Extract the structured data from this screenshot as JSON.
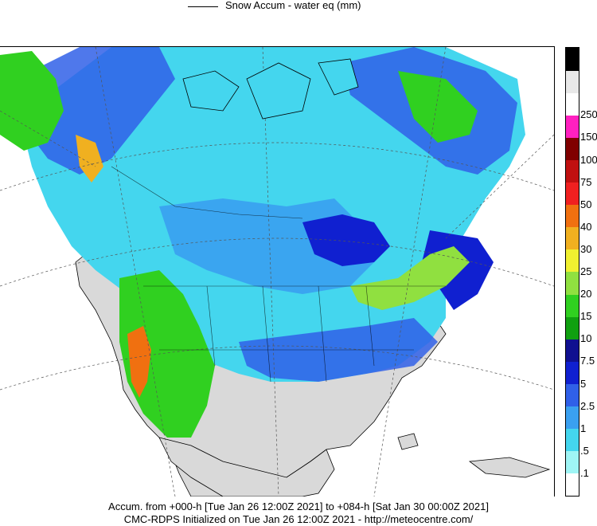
{
  "title": "Snow Accum - water eq (mm)",
  "legend": {
    "colors": [
      "#ffffff",
      "#9ff5f5",
      "#44d6ee",
      "#3aa0f0",
      "#3060e8",
      "#1020d0",
      "#101090",
      "#10a010",
      "#30d020",
      "#90e040",
      "#f0f030",
      "#f0b020",
      "#f07010",
      "#f02020",
      "#c01010",
      "#800000",
      "#ff20c0",
      "#ffffff",
      "#e8e8e8",
      "#000000"
    ],
    "labels": [
      ".1",
      ".5",
      "1",
      "2.5",
      "5",
      "7.5",
      "10",
      "15",
      "20",
      "25",
      "30",
      "40",
      "50",
      "75",
      "100",
      "150",
      "250"
    ]
  },
  "footer": {
    "line1": "Accum. from +000-h [Tue Jan 26 12:00Z 2021] to +084-h [Sat Jan 30 00:00Z 2021]",
    "line2": "CMC-RDPS Initialized on Tue Jan 26 12:00Z 2021 - http://meteocentre.com/"
  }
}
